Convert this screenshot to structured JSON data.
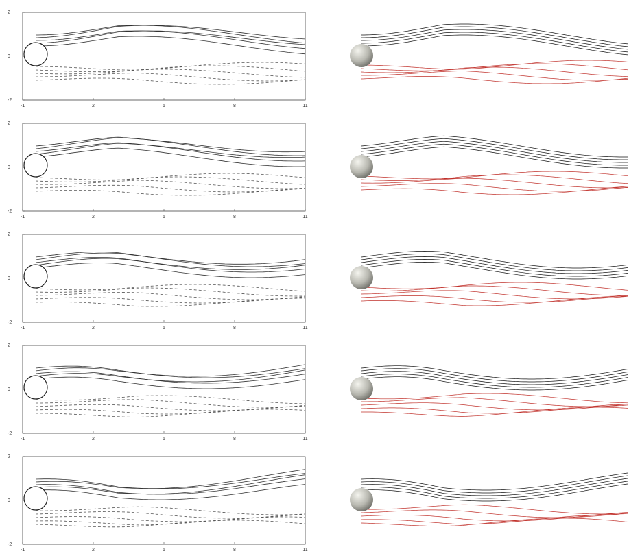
{
  "panels": [
    {
      "xticks": [
        -1,
        2,
        5,
        8,
        11
      ],
      "yticks": [
        -2,
        0,
        2
      ]
    },
    {
      "xticks": [
        -1,
        2,
        5,
        8,
        11
      ],
      "yticks": [
        -2,
        0,
        2
      ]
    },
    {
      "xticks": [
        -1,
        2,
        5,
        8,
        11
      ],
      "yticks": [
        -2,
        0,
        2
      ]
    },
    {
      "xticks": [
        -1,
        2,
        5,
        8,
        11
      ],
      "yticks": [
        -2,
        0,
        2
      ]
    },
    {
      "xticks": [
        -1,
        2,
        5,
        8,
        11
      ],
      "yticks": [
        -2,
        0,
        2
      ]
    }
  ]
}
